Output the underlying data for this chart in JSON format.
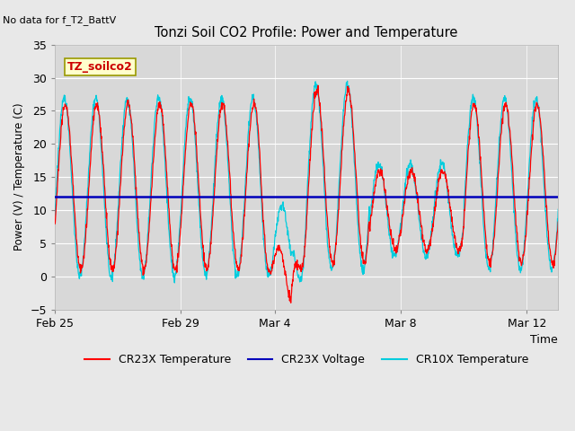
{
  "title": "Tonzi Soil CO2 Profile: Power and Temperature",
  "no_data_text": "No data for f_T2_BattV",
  "ylabel": "Power (V) / Temperature (C)",
  "xlabel": "Time",
  "ylim": [
    -5,
    35
  ],
  "yticks": [
    -5,
    0,
    5,
    10,
    15,
    20,
    25,
    30,
    35
  ],
  "voltage_level": 12.0,
  "fig_facecolor": "#e8e8e8",
  "ax_facecolor": "#d8d8d8",
  "legend_label_text": "TZ_soilco2",
  "legend_box_facecolor": "#ffffcc",
  "legend_box_edgecolor": "#999900",
  "cr23x_temp_color": "#ff0000",
  "cr23x_volt_color": "#0000bb",
  "cr10x_temp_color": "#00ccdd",
  "x_tick_labels": [
    "Feb 25",
    "Feb 29",
    "Mar 4",
    "Mar 8",
    "Mar 12"
  ],
  "x_tick_positions": [
    0,
    4,
    7,
    11,
    15
  ],
  "xlim": [
    0,
    16
  ]
}
